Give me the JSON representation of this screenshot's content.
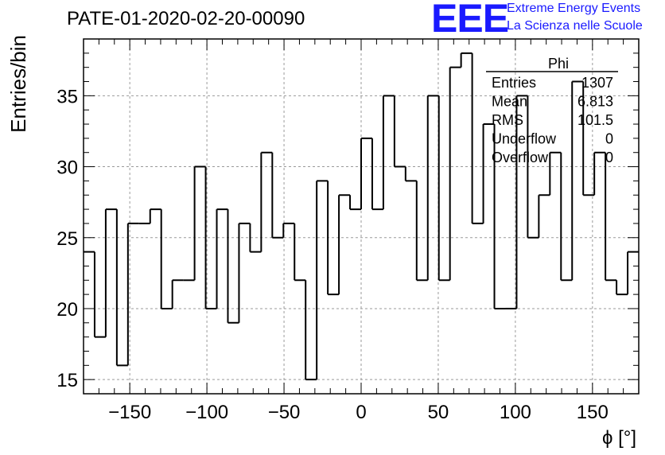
{
  "header": {
    "title": "PATE-01-2020-02-20-00090",
    "logo_text": "EEE",
    "logo_line1": "Extreme Energy Events",
    "logo_line2": "La Scienza nelle Scuole"
  },
  "stats_box": {
    "name": "Phi",
    "rows": [
      {
        "label": "Entries",
        "value": "1307"
      },
      {
        "label": "Mean",
        "value": "6.813"
      },
      {
        "label": "RMS",
        "value": "101.5"
      },
      {
        "label": "Underflow",
        "value": "0"
      },
      {
        "label": "Overflow",
        "value": "0"
      }
    ]
  },
  "colors": {
    "line": "#000000",
    "grid": "#9a9a9a",
    "logo": "#1a1aff"
  },
  "chart_data": {
    "type": "bar",
    "histogram": true,
    "title": "PATE-01-2020-02-20-00090",
    "xlabel": "ϕ [°]",
    "ylabel": "Entries/bin",
    "xlim": [
      -180,
      180
    ],
    "ylim": [
      14,
      39
    ],
    "bin_width": 7.2,
    "bin_edges_start": -180,
    "xticks": [
      -150,
      -100,
      -50,
      0,
      50,
      100,
      150
    ],
    "xtick_labels": [
      "−150",
      "−100",
      "−50",
      "0",
      "50",
      "100",
      "150"
    ],
    "yticks": [
      15,
      20,
      25,
      30,
      35
    ],
    "ytick_labels": [
      "15",
      "20",
      "25",
      "30",
      "35"
    ],
    "grid": true,
    "values": [
      24,
      18,
      27,
      16,
      26,
      26,
      27,
      20,
      22,
      22,
      30,
      20,
      27,
      19,
      26,
      24,
      31,
      25,
      26,
      22,
      15,
      29,
      21,
      28,
      27,
      32,
      27,
      35,
      30,
      29,
      22,
      35,
      22,
      37,
      38,
      26,
      33,
      20,
      20,
      35,
      25,
      28,
      31,
      22,
      36,
      28,
      31,
      22,
      21,
      24
    ]
  }
}
